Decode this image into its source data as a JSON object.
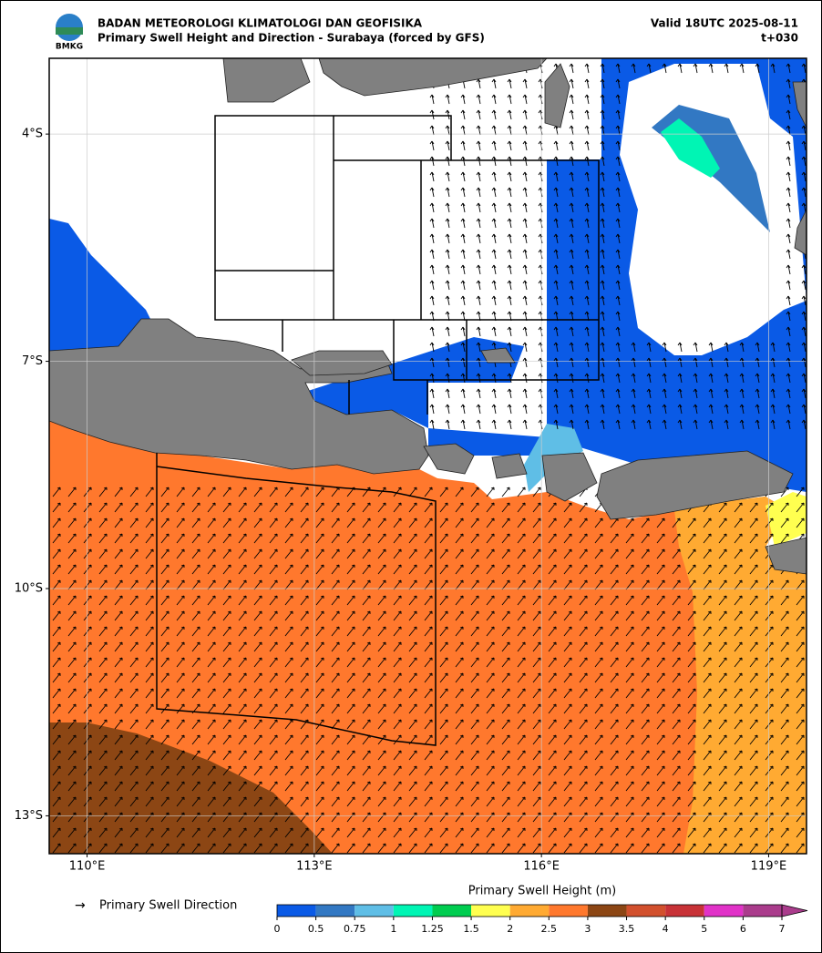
{
  "header": {
    "agency": "BADAN METEOROLOGI KLIMATOLOGI DAN GEOFISIKA",
    "subtitle": "Primary Swell Height and Direction - Surabaya (forced by GFS)",
    "valid": "Valid 18UTC 2025-08-11",
    "lead": "t+030",
    "logo_text": "BMKG"
  },
  "map": {
    "lon_range": [
      109.5,
      119.5
    ],
    "lat_range": [
      -3,
      -13.5
    ],
    "lon_ticks": [
      {
        "value": 110,
        "label": "110°E"
      },
      {
        "value": 113,
        "label": "113°E"
      },
      {
        "value": 116,
        "label": "116°E"
      },
      {
        "value": 119,
        "label": "119°E"
      }
    ],
    "lat_ticks": [
      {
        "value": -4,
        "label": "4°S"
      },
      {
        "value": -7,
        "label": "7°S"
      },
      {
        "value": -10,
        "label": "10°S"
      },
      {
        "value": -13,
        "label": "13°S"
      }
    ],
    "grid": true
  },
  "legend": {
    "direction_label": "Primary Swell Direction",
    "colorbar_title": "Primary Swell Height (m)",
    "ticks": [
      0,
      0.5,
      0.75,
      1,
      1.25,
      1.5,
      2,
      2.5,
      3,
      3.5,
      4,
      5,
      6,
      7
    ],
    "colors": [
      "#0a5ae6",
      "#3278c3",
      "#5fbee6",
      "#00f5b4",
      "#00cd50",
      "#ffff50",
      "#ffaa32",
      "#ff782d",
      "#8c4614",
      "#d2502d",
      "#c83237",
      "#e132c8",
      "#aa3c8c"
    ],
    "extend_color": "#aa3c8c"
  }
}
